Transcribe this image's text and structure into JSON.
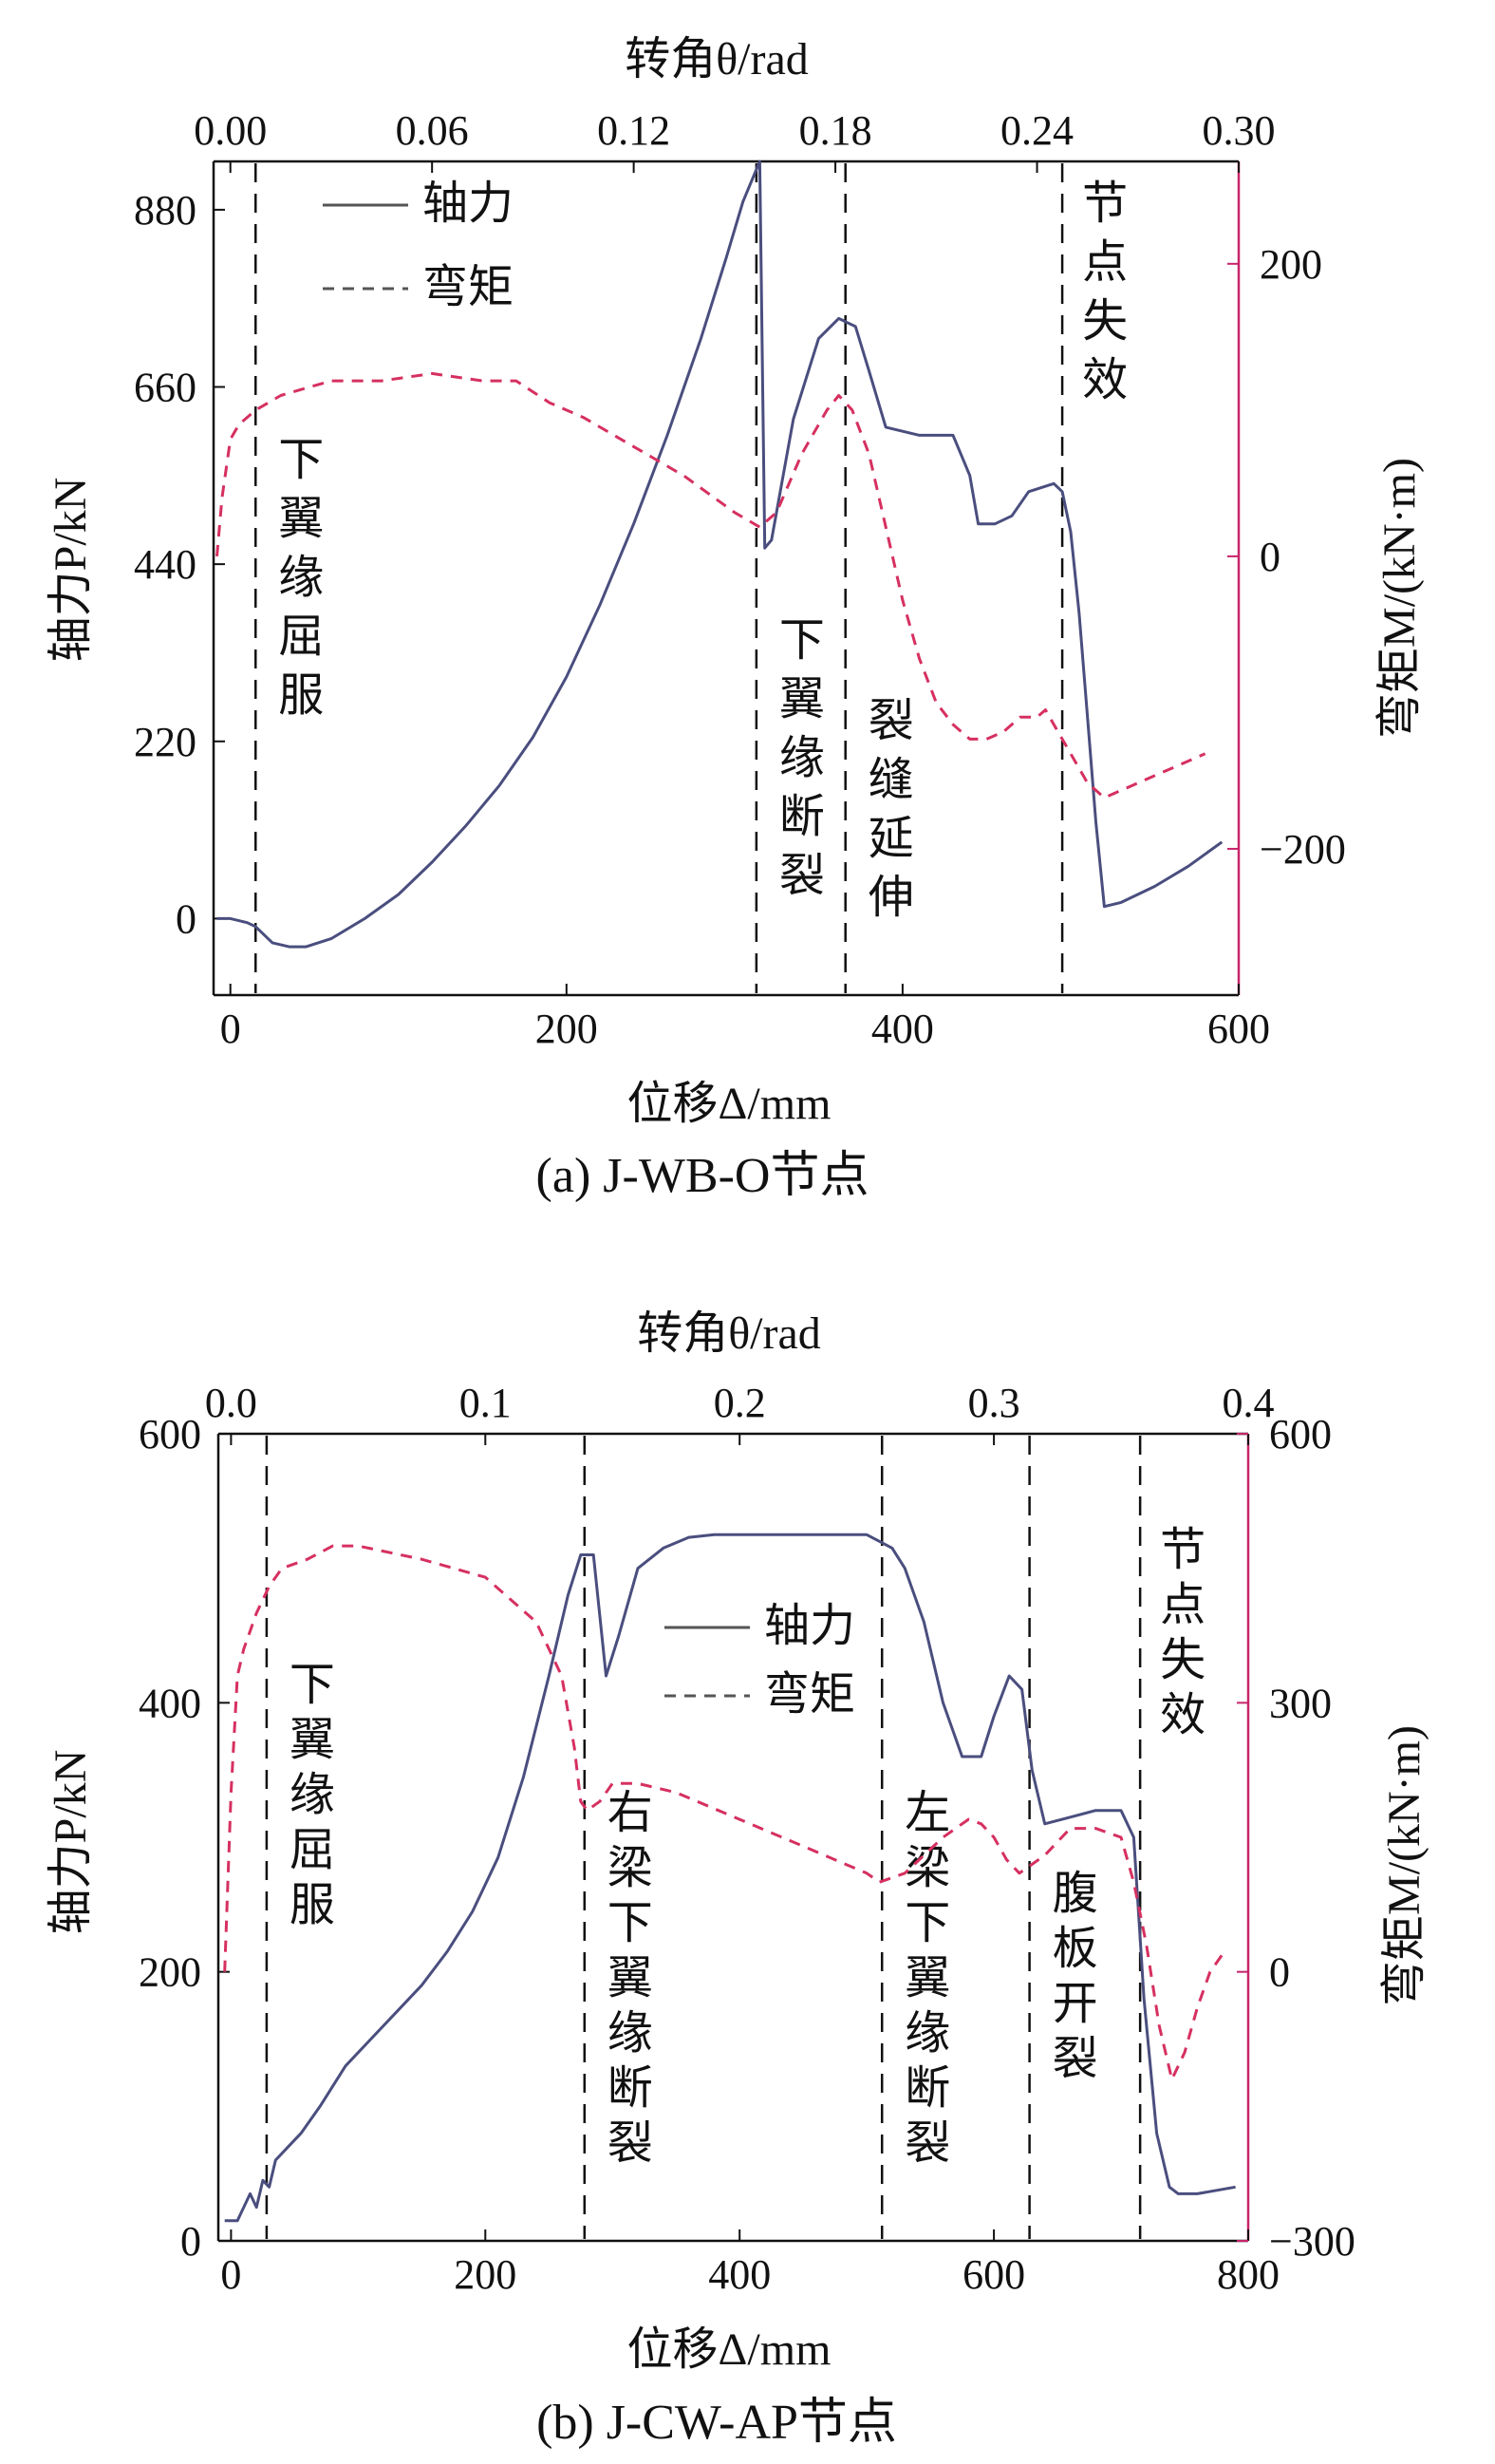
{
  "colors": {
    "axial": "#4a4e7e",
    "moment": "#d63060",
    "frame": "#111111",
    "right_axis": "#c8246a"
  },
  "chart_data": [
    {
      "type": "line",
      "caption": "(a) J-WB-O节点",
      "xlabel": "位移Δ/mm",
      "x2label": "转角θ/rad",
      "ylabel": "轴力P/kN",
      "y2label": "弯矩M/(kN·m)",
      "xlim": [
        -10,
        600
      ],
      "ylim": [
        -95,
        940
      ],
      "x2lim": [
        -0.005,
        0.3
      ],
      "y2lim": [
        -300,
        270
      ],
      "xticks": [
        {
          "v": 0,
          "t": "0"
        },
        {
          "v": 200,
          "t": "200"
        },
        {
          "v": 400,
          "t": "400"
        },
        {
          "v": 600,
          "t": "600"
        }
      ],
      "yticks": [
        {
          "v": 0,
          "t": "0"
        },
        {
          "v": 220,
          "t": "220"
        },
        {
          "v": 440,
          "t": "440"
        },
        {
          "v": 660,
          "t": "660"
        },
        {
          "v": 880,
          "t": "880"
        }
      ],
      "x2ticks": [
        {
          "v": 0,
          "t": "0.00"
        },
        {
          "v": 0.06,
          "t": "0.06"
        },
        {
          "v": 0.12,
          "t": "0.12"
        },
        {
          "v": 0.18,
          "t": "0.18"
        },
        {
          "v": 0.24,
          "t": "0.24"
        },
        {
          "v": 0.3,
          "t": "0.30"
        }
      ],
      "y2ticks": [
        {
          "v": -200,
          "t": "−200"
        },
        {
          "v": 0,
          "t": "0"
        },
        {
          "v": 200,
          "t": "200"
        }
      ],
      "legend": {
        "placement": "top-left",
        "entries": [
          "轴力",
          "弯矩"
        ]
      },
      "series": [
        {
          "name": "轴力",
          "axis": "left",
          "style": "solid",
          "x": [
            -8,
            0,
            10,
            15,
            25,
            35,
            45,
            60,
            80,
            100,
            120,
            140,
            160,
            180,
            200,
            220,
            240,
            260,
            280,
            295,
            305,
            315,
            315,
            318,
            322,
            335,
            350,
            362,
            372,
            380,
            390,
            410,
            430,
            440,
            445,
            455,
            465,
            475,
            490,
            495,
            500,
            505,
            510,
            515,
            520,
            530,
            550,
            570,
            590
          ],
          "values": [
            0,
            0,
            -5,
            -10,
            -30,
            -35,
            -35,
            -25,
            0,
            30,
            70,
            115,
            165,
            225,
            300,
            390,
            490,
            600,
            720,
            820,
            890,
            940,
            940,
            460,
            470,
            620,
            720,
            745,
            735,
            680,
            610,
            600,
            600,
            550,
            490,
            490,
            500,
            530,
            540,
            530,
            480,
            380,
            250,
            120,
            15,
            20,
            40,
            65,
            95
          ]
        },
        {
          "name": "弯矩",
          "axis": "right",
          "style": "dashed",
          "x": [
            -8,
            -5,
            0,
            5,
            15,
            30,
            60,
            90,
            120,
            150,
            170,
            190,
            210,
            240,
            270,
            300,
            315,
            325,
            340,
            355,
            362,
            370,
            380,
            390,
            400,
            410,
            420,
            430,
            440,
            450,
            460,
            470,
            480,
            485,
            490,
            495,
            500,
            510,
            520,
            530,
            550,
            570,
            580
          ],
          "values": [
            0,
            40,
            80,
            90,
            100,
            110,
            120,
            120,
            125,
            120,
            120,
            105,
            95,
            75,
            55,
            30,
            20,
            30,
            70,
            100,
            110,
            100,
            70,
            20,
            -30,
            -70,
            -100,
            -115,
            -125,
            -125,
            -120,
            -110,
            -110,
            -105,
            -115,
            -125,
            -135,
            -155,
            -165,
            -160,
            -150,
            -140,
            -135
          ]
        }
      ],
      "annotations": [
        {
          "x": 15,
          "text": "下翼缘屈服"
        },
        {
          "x": 313,
          "text": "下翼缘断裂"
        },
        {
          "x": 366,
          "text": "裂缝延伸"
        },
        {
          "x": 495,
          "text": "节点失效"
        }
      ]
    },
    {
      "type": "line",
      "caption": "(b) J-CW-AP节点",
      "xlabel": "位移Δ/mm",
      "x2label": "转角θ/rad",
      "ylabel": "轴力P/kN",
      "y2label": "弯矩M/(kN·m)",
      "xlim": [
        -10,
        800
      ],
      "ylim": [
        0,
        600
      ],
      "x2lim": [
        -0.005,
        0.4
      ],
      "y2lim": [
        -300,
        600
      ],
      "xticks": [
        {
          "v": 0,
          "t": "0"
        },
        {
          "v": 200,
          "t": "200"
        },
        {
          "v": 400,
          "t": "400"
        },
        {
          "v": 600,
          "t": "600"
        },
        {
          "v": 800,
          "t": "800"
        }
      ],
      "yticks": [
        {
          "v": 0,
          "t": "0"
        },
        {
          "v": 200,
          "t": "200"
        },
        {
          "v": 400,
          "t": "400"
        },
        {
          "v": 600,
          "t": "600"
        }
      ],
      "x2ticks": [
        {
          "v": 0,
          "t": "0.0"
        },
        {
          "v": 0.1,
          "t": "0.1"
        },
        {
          "v": 0.2,
          "t": "0.2"
        },
        {
          "v": 0.3,
          "t": "0.3"
        },
        {
          "v": 0.4,
          "t": "0.4"
        }
      ],
      "y2ticks": [
        {
          "v": -300,
          "t": "−300"
        },
        {
          "v": 0,
          "t": "0"
        },
        {
          "v": 300,
          "t": "300"
        },
        {
          "v": 600,
          "t": "600"
        }
      ],
      "legend": {
        "placement": "center",
        "entries": [
          "轴力",
          "弯矩"
        ]
      },
      "series": [
        {
          "name": "轴力",
          "axis": "left",
          "style": "solid",
          "x": [
            -5,
            5,
            10,
            15,
            20,
            25,
            30,
            35,
            45,
            55,
            70,
            90,
            110,
            130,
            150,
            170,
            190,
            210,
            230,
            250,
            265,
            275,
            285,
            295,
            305,
            320,
            340,
            360,
            380,
            400,
            450,
            500,
            510,
            520,
            530,
            545,
            560,
            575,
            590,
            600,
            612,
            622,
            630,
            640,
            660,
            680,
            700,
            710,
            718,
            728,
            738,
            745,
            760,
            790
          ],
          "values": [
            15,
            15,
            25,
            35,
            25,
            45,
            40,
            60,
            70,
            80,
            100,
            130,
            150,
            170,
            190,
            215,
            245,
            285,
            345,
            420,
            480,
            510,
            510,
            420,
            450,
            500,
            515,
            523,
            525,
            525,
            525,
            525,
            520,
            515,
            500,
            460,
            400,
            360,
            360,
            390,
            420,
            410,
            350,
            310,
            315,
            320,
            320,
            300,
            180,
            80,
            40,
            35,
            35,
            40
          ]
        },
        {
          "name": "弯矩",
          "axis": "right",
          "style": "dashed",
          "x": [
            -5,
            0,
            5,
            10,
            20,
            30,
            40,
            60,
            80,
            100,
            150,
            200,
            240,
            260,
            270,
            275,
            280,
            290,
            300,
            320,
            350,
            400,
            450,
            500,
            510,
            530,
            560,
            580,
            590,
            600,
            610,
            620,
            640,
            660,
            680,
            700,
            710,
            720,
            730,
            740,
            750,
            760,
            770,
            780
          ],
          "values": [
            0,
            200,
            330,
            360,
            400,
            430,
            450,
            460,
            475,
            475,
            460,
            440,
            390,
            330,
            250,
            190,
            180,
            190,
            210,
            210,
            200,
            170,
            140,
            110,
            100,
            110,
            150,
            170,
            165,
            150,
            125,
            110,
            130,
            160,
            160,
            150,
            100,
            30,
            -60,
            -120,
            -90,
            -40,
            0,
            20
          ]
        }
      ],
      "annotations": [
        {
          "x": 28,
          "text": "下翼缘屈服"
        },
        {
          "x": 278,
          "text": "右梁下翼缘断裂"
        },
        {
          "x": 512,
          "text": "左梁下翼缘断裂"
        },
        {
          "x": 628,
          "text": "腹板开裂"
        },
        {
          "x": 715,
          "text": "节点失效"
        }
      ]
    }
  ]
}
